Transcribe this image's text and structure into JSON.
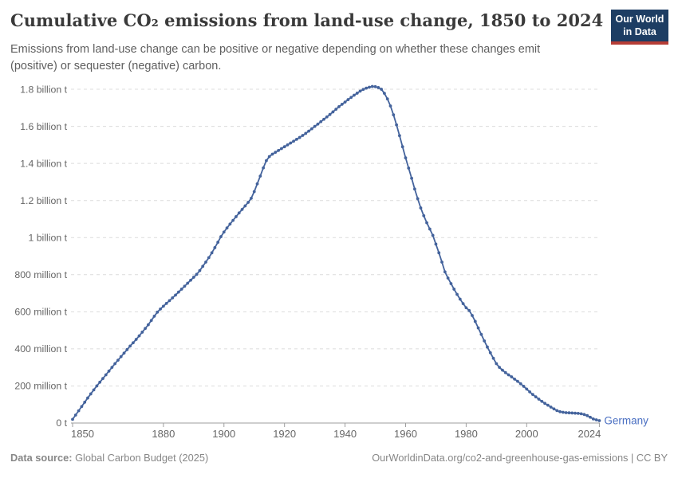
{
  "header": {
    "title": "Cumulative CO₂ emissions from land-use change, 1850 to 2024",
    "subtitle": "Emissions from land-use change can be positive or negative depending on whether these changes emit (positive) or sequester (negative) carbon.",
    "logo": {
      "line1": "Our World",
      "line2": "in Data",
      "bg_color": "#1d3d63",
      "bar_color": "#b53d36",
      "text_color": "#ffffff"
    }
  },
  "chart_data": {
    "type": "line",
    "title": "Cumulative CO₂ emissions from land-use change, 1850 to 2024",
    "xlabel": "",
    "ylabel": "",
    "unit": "tonnes of CO₂ (values in billions)",
    "x_range": [
      1850,
      2024
    ],
    "ylim": [
      0,
      1.8
    ],
    "grid": "horizontal dashed",
    "legend_position": "label at end of line",
    "x_ticks": [
      1850,
      1880,
      1900,
      1920,
      1940,
      1960,
      1980,
      2000,
      2024
    ],
    "y_ticks": [
      {
        "value": 0,
        "label": "0 t"
      },
      {
        "value": 0.2,
        "label": "200 million t"
      },
      {
        "value": 0.4,
        "label": "400 million t"
      },
      {
        "value": 0.6,
        "label": "600 million t"
      },
      {
        "value": 0.8,
        "label": "800 million t"
      },
      {
        "value": 1.0,
        "label": "1 billion t"
      },
      {
        "value": 1.2,
        "label": "1.2 billion t"
      },
      {
        "value": 1.4,
        "label": "1.4 billion t"
      },
      {
        "value": 1.6,
        "label": "1.6 billion t"
      },
      {
        "value": 1.8,
        "label": "1.8 billion t"
      }
    ],
    "series": [
      {
        "name": "Germany",
        "color": "#44639c",
        "label_color": "#4a6fc2",
        "first_year": 1850,
        "last_year": 2024,
        "values_unit": "billion t",
        "values": [
          0.02,
          0.043,
          0.066,
          0.089,
          0.112,
          0.135,
          0.157,
          0.179,
          0.2,
          0.22,
          0.24,
          0.26,
          0.28,
          0.3,
          0.32,
          0.339,
          0.358,
          0.377,
          0.396,
          0.415,
          0.433,
          0.451,
          0.47,
          0.49,
          0.51,
          0.53,
          0.553,
          0.576,
          0.598,
          0.615,
          0.63,
          0.645,
          0.66,
          0.675,
          0.69,
          0.706,
          0.722,
          0.738,
          0.754,
          0.77,
          0.786,
          0.802,
          0.822,
          0.845,
          0.868,
          0.892,
          0.918,
          0.946,
          0.975,
          1.005,
          1.03,
          1.052,
          1.073,
          1.093,
          1.113,
          1.133,
          1.152,
          1.171,
          1.19,
          1.212,
          1.248,
          1.29,
          1.332,
          1.376,
          1.415,
          1.437,
          1.45,
          1.46,
          1.47,
          1.48,
          1.49,
          1.5,
          1.51,
          1.52,
          1.53,
          1.54,
          1.551,
          1.562,
          1.574,
          1.587,
          1.6,
          1.612,
          1.625,
          1.638,
          1.651,
          1.664,
          1.678,
          1.692,
          1.706,
          1.719,
          1.731,
          1.744,
          1.756,
          1.768,
          1.779,
          1.79,
          1.799,
          1.806,
          1.811,
          1.815,
          1.814,
          1.809,
          1.8,
          1.778,
          1.748,
          1.71,
          1.662,
          1.608,
          1.55,
          1.49,
          1.43,
          1.375,
          1.32,
          1.262,
          1.21,
          1.16,
          1.118,
          1.08,
          1.046,
          1.012,
          0.965,
          0.918,
          0.868,
          0.815,
          0.782,
          0.752,
          0.722,
          0.694,
          0.668,
          0.644,
          0.622,
          0.607,
          0.58,
          0.548,
          0.513,
          0.478,
          0.443,
          0.41,
          0.379,
          0.349,
          0.32,
          0.3,
          0.285,
          0.272,
          0.26,
          0.249,
          0.237,
          0.225,
          0.212,
          0.198,
          0.183,
          0.168,
          0.154,
          0.141,
          0.129,
          0.117,
          0.106,
          0.096,
          0.086,
          0.076,
          0.067,
          0.061,
          0.058,
          0.056,
          0.055,
          0.054,
          0.053,
          0.052,
          0.05,
          0.046,
          0.04,
          0.031,
          0.022,
          0.017,
          0.013
        ]
      }
    ]
  },
  "footer": {
    "datasource_label": "Data source:",
    "datasource_value": " Global Carbon Budget (2025)",
    "attribution": "OurWorldinData.org/co2-and-greenhouse-gas-emissions | CC BY"
  }
}
